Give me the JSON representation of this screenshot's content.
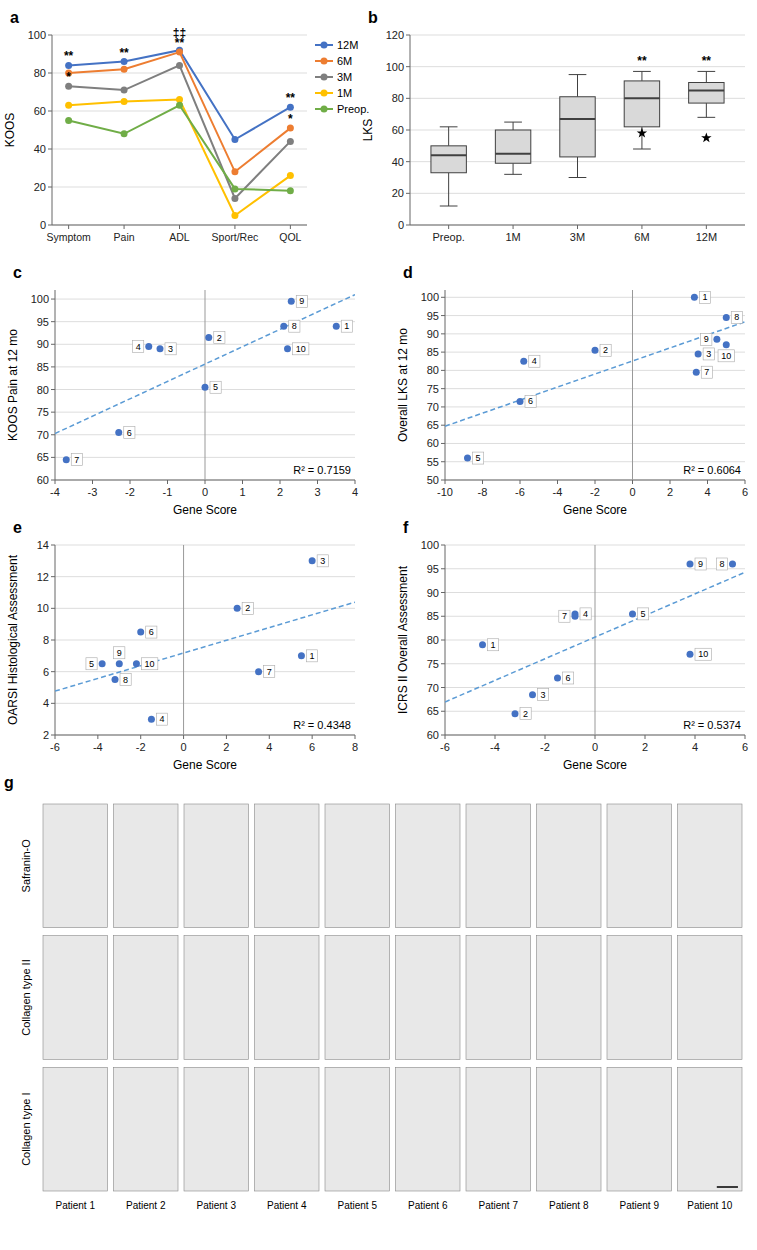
{
  "chart_data": [
    {
      "type": "line",
      "title": "a",
      "ylabel": "KOOS",
      "categories": [
        "Symptom",
        "Pain",
        "ADL",
        "Sport/Rec",
        "QOL"
      ],
      "series": [
        {
          "name": "12M",
          "color": "#4472C4",
          "marker": "circle",
          "values": [
            84,
            86,
            92,
            45,
            62
          ]
        },
        {
          "name": "6M",
          "color": "#ED7D31",
          "marker": "circle",
          "values": [
            80,
            82,
            91,
            28,
            51
          ]
        },
        {
          "name": "3M",
          "color": "#7F7F7F",
          "marker": "circle",
          "values": [
            73,
            71,
            84,
            14,
            44
          ]
        },
        {
          "name": "1M",
          "color": "#FFC000",
          "marker": "circle",
          "values": [
            63,
            65,
            66,
            5,
            26
          ]
        },
        {
          "name": "Preop.",
          "color": "#70AD47",
          "marker": "circle",
          "values": [
            55,
            48,
            63,
            19,
            18
          ]
        }
      ],
      "ylim": [
        0,
        100
      ],
      "yticks": [
        0,
        20,
        40,
        60,
        80,
        100
      ],
      "grid": true,
      "legend": "right",
      "annotations": [
        {
          "category": "Symptom",
          "series": "12M",
          "text": "**"
        },
        {
          "category": "Symptom",
          "series": "3M",
          "text": "*"
        },
        {
          "category": "Pain",
          "series": "12M",
          "text": "**"
        },
        {
          "category": "ADL",
          "series": "12M",
          "text": "‡‡"
        },
        {
          "category": "ADL",
          "series": "6M",
          "text": "**"
        },
        {
          "category": "QOL",
          "series": "12M",
          "text": "**"
        },
        {
          "category": "QOL",
          "series": "6M",
          "text": "*"
        }
      ]
    },
    {
      "type": "box",
      "title": "b",
      "ylabel": "LKS",
      "categories": [
        "Preop.",
        "1M",
        "3M",
        "6M",
        "12M"
      ],
      "q1": [
        33,
        39,
        43,
        62,
        77
      ],
      "median": [
        44,
        45,
        67,
        80,
        85
      ],
      "q3": [
        50,
        60,
        81,
        91,
        90
      ],
      "whisker_low": [
        12,
        32,
        30,
        48,
        68
      ],
      "whisker_high": [
        62,
        65,
        95,
        97,
        97
      ],
      "outliers": [
        [],
        [],
        [],
        [
          58
        ],
        [
          55
        ]
      ],
      "color": "#D9D9D9",
      "ylim": [
        0,
        120
      ],
      "yticks": [
        0,
        20,
        40,
        60,
        80,
        100,
        120
      ],
      "grid": true,
      "annotations": [
        {
          "category": "6M",
          "text": "**"
        },
        {
          "category": "12M",
          "text": "**"
        }
      ]
    },
    {
      "type": "scatter",
      "title": "c",
      "xlabel": "Gene Score",
      "ylabel": "KOOS Pain at 12 mo",
      "x": [
        3.5,
        0.1,
        -1.2,
        -1.5,
        0.0,
        -2.3,
        -3.7,
        2.1,
        2.3,
        2.2
      ],
      "values": [
        94.0,
        91.5,
        89.0,
        89.5,
        80.5,
        70.5,
        64.5,
        94.0,
        99.5,
        89.0
      ],
      "point_labels": [
        "1",
        "2",
        "3",
        "4",
        "5",
        "6",
        "7",
        "8",
        "9",
        "10"
      ],
      "color": "#4472C4",
      "marker": "circle",
      "trend_line": {
        "x": [
          -4,
          4
        ],
        "values": [
          70.27,
          100.98
        ],
        "color": "#5B9BD5",
        "line_style": "dashed"
      },
      "vline_x": 0,
      "xlim": [
        -4,
        4
      ],
      "ylim": [
        60,
        102
      ],
      "xticks": [
        -4,
        -3,
        -2,
        -1,
        0,
        1,
        2,
        3,
        4
      ],
      "yticks": [
        60,
        65,
        70,
        75,
        80,
        85,
        90,
        95,
        100
      ],
      "grid": true,
      "annotations": [
        {
          "text": "R² = 0.7159"
        }
      ]
    },
    {
      "type": "scatter",
      "title": "d",
      "xlabel": "Gene Score",
      "ylabel": "Overall LKS at 12 mo",
      "x": [
        3.3,
        -2.0,
        3.5,
        -5.8,
        -8.8,
        -6.0,
        3.4,
        5.0,
        4.5,
        5.0
      ],
      "values": [
        100.0,
        85.5,
        84.5,
        82.5,
        56.0,
        71.5,
        79.5,
        94.5,
        88.5,
        87.0
      ],
      "point_labels": [
        "1",
        "2",
        "3",
        "4",
        "5",
        "6",
        "7",
        "8",
        "9",
        "10"
      ],
      "color": "#4472C4",
      "marker": "circle",
      "trend_line": {
        "x": [
          -10,
          6
        ],
        "values": [
          64.72,
          93.29
        ],
        "color": "#5B9BD5",
        "line_style": "dashed"
      },
      "vline_x": 0,
      "xlim": [
        -10,
        6
      ],
      "ylim": [
        50,
        102
      ],
      "xticks": [
        -10,
        -8,
        -6,
        -4,
        -2,
        0,
        2,
        4,
        6
      ],
      "yticks": [
        50,
        55,
        60,
        65,
        70,
        75,
        80,
        85,
        90,
        95,
        100
      ],
      "grid": true,
      "annotations": [
        {
          "text": "R² = 0.6064"
        }
      ]
    },
    {
      "type": "scatter",
      "title": "e",
      "xlabel": "Gene Score",
      "ylabel": "OARSI Histological Assessment",
      "x": [
        5.5,
        2.5,
        6.0,
        -1.5,
        -3.8,
        -2.0,
        3.5,
        -3.2,
        -3.0,
        -2.2
      ],
      "values": [
        7.0,
        10.0,
        13.0,
        3.0,
        6.5,
        8.5,
        6.0,
        5.5,
        6.5,
        6.5
      ],
      "point_labels": [
        "1",
        "2",
        "3",
        "4",
        "5",
        "6",
        "7",
        "8",
        "9",
        "10"
      ],
      "color": "#4472C4",
      "marker": "circle",
      "trend_line": {
        "x": [
          -6,
          8
        ],
        "values": [
          4.77,
          10.39
        ],
        "color": "#5B9BD5",
        "line_style": "dashed"
      },
      "vline_x": 0,
      "xlim": [
        -6,
        8
      ],
      "ylim": [
        2,
        14
      ],
      "xticks": [
        -6,
        -4,
        -2,
        0,
        2,
        4,
        6,
        8
      ],
      "yticks": [
        2,
        4,
        6,
        8,
        10,
        12,
        14
      ],
      "grid": true,
      "annotations": [
        {
          "text": "R² = 0.4348"
        }
      ]
    },
    {
      "type": "scatter",
      "title": "f",
      "xlabel": "Gene Score",
      "ylabel": "ICRS II Overall Assessment",
      "x": [
        -4.5,
        -3.2,
        -2.5,
        -0.8,
        1.5,
        -1.5,
        -0.8,
        5.5,
        3.8,
        3.8
      ],
      "values": [
        79.0,
        64.5,
        68.5,
        85.5,
        85.5,
        72.0,
        85.0,
        96.0,
        96.0,
        77.0
      ],
      "point_labels": [
        "1",
        "2",
        "3",
        "4",
        "5",
        "6",
        "7",
        "8",
        "9",
        "10"
      ],
      "color": "#4472C4",
      "marker": "circle",
      "trend_line": {
        "x": [
          -6,
          6
        ],
        "values": [
          66.95,
          94.26
        ],
        "color": "#5B9BD5",
        "line_style": "dashed"
      },
      "vline_x": 0,
      "xlim": [
        -6,
        6
      ],
      "ylim": [
        60,
        100
      ],
      "xticks": [
        -6,
        -4,
        -2,
        0,
        2,
        4,
        6
      ],
      "yticks": [
        60,
        65,
        70,
        75,
        80,
        85,
        90,
        95,
        100
      ],
      "grid": true,
      "annotations": [
        {
          "text": "R² = 0.5374"
        }
      ]
    },
    {
      "type": "image_grid",
      "title": "g",
      "rows": [
        "Safranin-O",
        "Collagen type II",
        "Collagen type I"
      ],
      "categories": [
        "Patient 1",
        "Patient 2",
        "Patient 3",
        "Patient 4",
        "Patient 5",
        "Patient 6",
        "Patient 7",
        "Patient 8",
        "Patient 9",
        "Patient 10"
      ]
    }
  ]
}
